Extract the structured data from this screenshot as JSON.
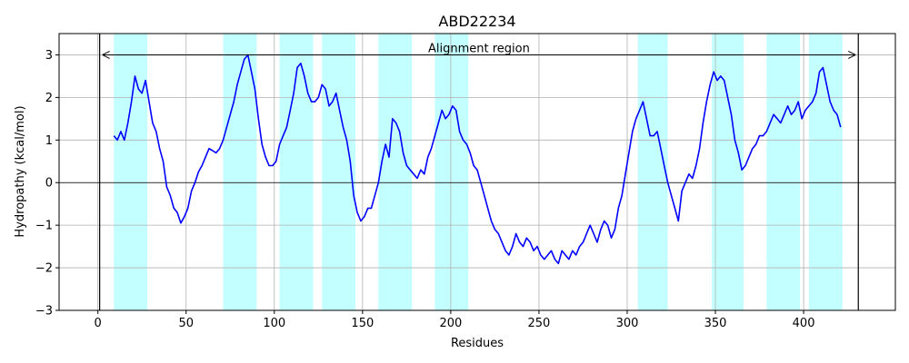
{
  "chart_data": {
    "type": "line",
    "title": "ABD22234",
    "xlabel": "Residues",
    "ylabel": "Hydropathy (kcal/mol)",
    "xlim": [
      -22,
      452
    ],
    "ylim": [
      -3,
      3.5
    ],
    "xticks": [
      0,
      50,
      100,
      150,
      200,
      250,
      300,
      350,
      400
    ],
    "yticks": [
      -3,
      -2,
      -1,
      0,
      1,
      2,
      3
    ],
    "xtick_labels": [
      "0",
      "50",
      "100",
      "150",
      "200",
      "250",
      "300",
      "350",
      "400"
    ],
    "ytick_labels": [
      "−3",
      "−2",
      "−1",
      "0",
      "1",
      "2",
      "3"
    ],
    "grid": true,
    "line_color": "#0000ff",
    "highlight_color": "#c4ffff",
    "highlight_regions": [
      [
        9,
        28
      ],
      [
        71,
        90
      ],
      [
        103,
        122
      ],
      [
        127,
        146
      ],
      [
        159,
        178
      ],
      [
        191,
        210
      ],
      [
        306,
        323
      ],
      [
        348,
        366
      ],
      [
        379,
        398
      ],
      [
        403,
        422
      ]
    ],
    "alignment_region": {
      "start": 1,
      "end": 431,
      "label": "Alignment region",
      "y": 3
    },
    "series": [
      {
        "x": [
          9,
          11,
          13,
          15,
          17,
          19,
          21,
          23,
          25,
          27,
          29,
          31,
          33,
          35,
          37,
          39,
          41,
          43,
          45,
          47,
          49,
          51,
          53,
          55,
          57,
          59,
          61,
          63,
          65,
          67,
          69,
          71,
          73,
          75,
          77,
          79,
          81,
          83,
          85,
          87,
          89,
          91,
          93,
          95,
          97,
          99,
          101,
          103,
          105,
          107,
          109,
          111,
          113,
          115,
          117,
          119,
          121,
          123,
          125,
          127,
          129,
          131,
          133,
          135,
          137,
          139,
          141,
          143,
          145,
          147,
          149,
          151,
          153,
          155,
          157,
          159,
          161,
          163,
          165,
          167,
          169,
          171,
          173,
          175,
          177,
          179,
          181,
          183,
          185,
          187,
          189,
          191,
          193,
          195,
          197,
          199,
          201,
          203,
          205,
          207,
          209,
          211,
          213,
          215,
          217,
          219,
          221,
          223,
          225,
          227,
          229,
          231,
          233,
          235,
          237,
          239,
          241,
          243,
          245,
          247,
          249,
          251,
          253,
          255,
          257,
          259,
          261,
          263,
          265,
          267,
          269,
          271,
          273,
          275,
          277,
          279,
          281,
          283,
          285,
          287,
          289,
          291,
          293,
          295,
          297,
          299,
          301,
          303,
          305,
          307,
          309,
          311,
          313,
          315,
          317,
          319,
          321,
          323,
          325,
          327,
          329,
          331,
          333,
          335,
          337,
          339,
          341,
          343,
          345,
          347,
          349,
          351,
          353,
          355,
          357,
          359,
          361,
          363,
          365,
          367,
          369,
          371,
          373,
          375,
          377,
          379,
          381,
          383,
          385,
          387,
          389,
          391,
          393,
          395,
          397,
          399,
          401,
          403,
          405,
          407,
          409,
          411,
          413,
          415,
          417,
          419,
          421
        ],
        "y": [
          1.1,
          1.0,
          1.2,
          1.0,
          1.4,
          1.9,
          2.5,
          2.2,
          2.1,
          2.4,
          1.9,
          1.4,
          1.2,
          0.8,
          0.5,
          -0.1,
          -0.3,
          -0.6,
          -0.7,
          -0.95,
          -0.8,
          -0.6,
          -0.2,
          0.0,
          0.25,
          0.4,
          0.6,
          0.8,
          0.75,
          0.7,
          0.8,
          1.0,
          1.3,
          1.6,
          1.9,
          2.3,
          2.6,
          2.9,
          3.0,
          2.6,
          2.2,
          1.5,
          0.9,
          0.6,
          0.4,
          0.4,
          0.5,
          0.9,
          1.1,
          1.3,
          1.7,
          2.1,
          2.7,
          2.8,
          2.5,
          2.1,
          1.9,
          1.9,
          2.0,
          2.3,
          2.2,
          1.8,
          1.9,
          2.1,
          1.7,
          1.3,
          1.0,
          0.5,
          -0.3,
          -0.7,
          -0.9,
          -0.8,
          -0.6,
          -0.6,
          -0.3,
          0.0,
          0.5,
          0.9,
          0.6,
          1.5,
          1.4,
          1.2,
          0.7,
          0.4,
          0.3,
          0.2,
          0.1,
          0.3,
          0.2,
          0.6,
          0.8,
          1.1,
          1.4,
          1.7,
          1.5,
          1.6,
          1.8,
          1.7,
          1.2,
          1.0,
          0.9,
          0.7,
          0.4,
          0.3,
          0.0,
          -0.3,
          -0.6,
          -0.9,
          -1.1,
          -1.2,
          -1.4,
          -1.6,
          -1.7,
          -1.5,
          -1.2,
          -1.4,
          -1.5,
          -1.3,
          -1.4,
          -1.6,
          -1.5,
          -1.7,
          -1.8,
          -1.7,
          -1.6,
          -1.8,
          -1.9,
          -1.6,
          -1.7,
          -1.8,
          -1.6,
          -1.7,
          -1.5,
          -1.4,
          -1.2,
          -1.0,
          -1.2,
          -1.4,
          -1.1,
          -0.9,
          -1.0,
          -1.3,
          -1.1,
          -0.6,
          -0.3,
          0.2,
          0.7,
          1.2,
          1.5,
          1.7,
          1.9,
          1.5,
          1.1,
          1.1,
          1.2,
          0.8,
          0.4,
          0.0,
          -0.3,
          -0.6,
          -0.9,
          -0.2,
          0.0,
          0.2,
          0.1,
          0.4,
          0.8,
          1.4,
          1.9,
          2.3,
          2.6,
          2.4,
          2.5,
          2.4,
          2.0,
          1.6,
          1.0,
          0.7,
          0.3,
          0.4,
          0.6,
          0.8,
          0.9,
          1.1,
          1.1,
          1.2,
          1.4,
          1.6,
          1.5,
          1.4,
          1.6,
          1.8,
          1.6,
          1.7,
          1.9,
          1.5,
          1.7,
          1.8,
          1.9,
          2.1,
          2.6,
          2.7,
          2.3,
          1.9,
          1.7,
          1.6,
          1.3
        ]
      }
    ]
  }
}
